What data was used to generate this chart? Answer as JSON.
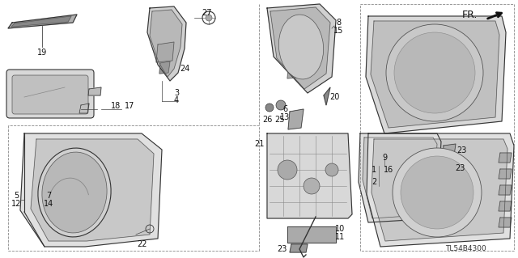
{
  "bg_color": "#ffffff",
  "line_color": "#333333",
  "light_fill": "#e8e8e8",
  "dark_fill": "#cccccc",
  "diagram_code": "TL54B4300",
  "fr_label": "FR.",
  "label_fs": 7,
  "small_label_fs": 6.5
}
